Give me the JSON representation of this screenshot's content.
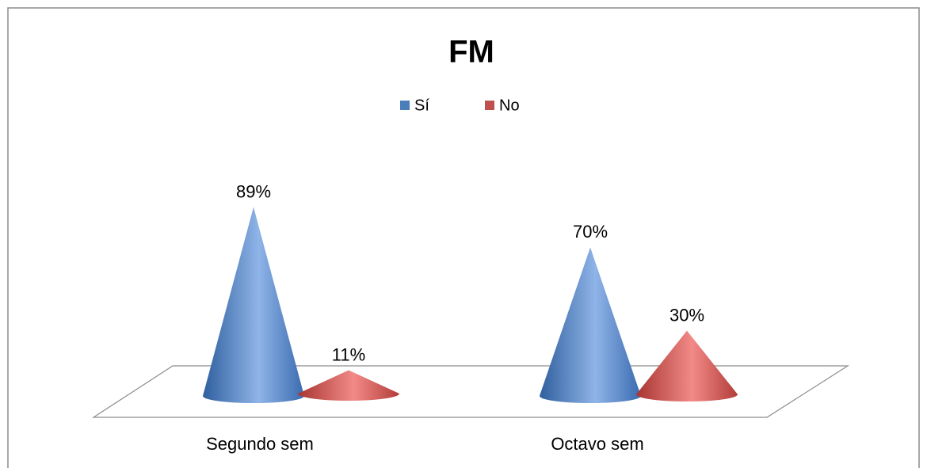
{
  "chart_data": {
    "type": "cone",
    "title": "FM",
    "categories": [
      "Segundo sem",
      "Octavo sem"
    ],
    "series": [
      {
        "name": "Sí",
        "color": "#4a7ebb",
        "values": [
          89,
          70
        ],
        "value_labels": [
          "89%",
          "70%"
        ]
      },
      {
        "name": "No",
        "color": "#c0504d",
        "values": [
          11,
          30
        ],
        "value_labels": [
          "11%",
          "30%"
        ]
      }
    ],
    "legend": "top"
  }
}
